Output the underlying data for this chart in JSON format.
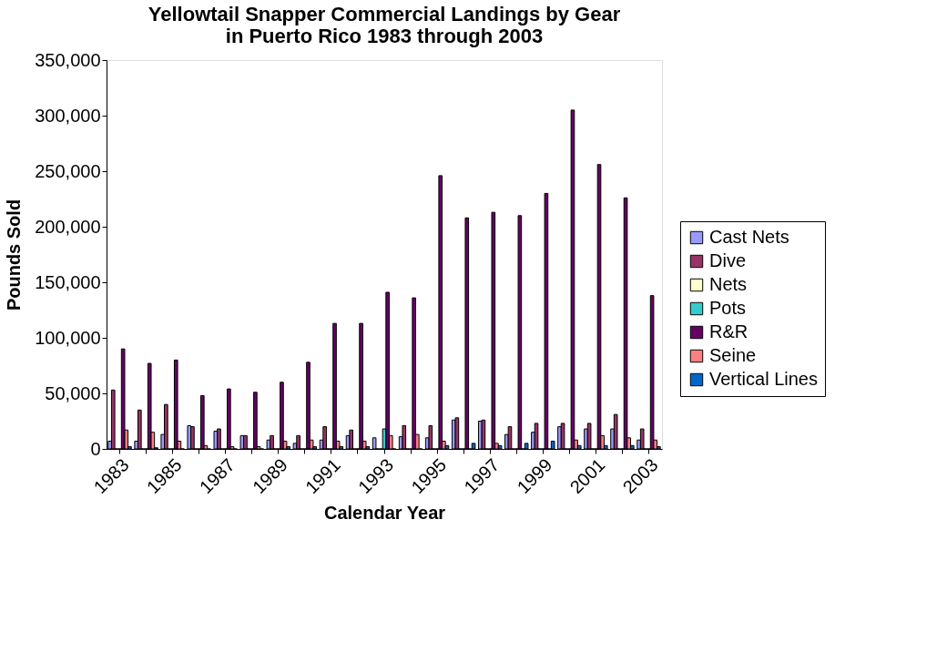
{
  "chart_data": {
    "type": "bar",
    "title": "Yellowtail Snapper Commercial Landings by Gear\nin Puerto Rico 1983 through 2003",
    "xlabel": "Calendar Year",
    "ylabel": "Pounds Sold",
    "categories": [
      "1983",
      null,
      "1985",
      null,
      "1987",
      null,
      "1989",
      null,
      "1991",
      null,
      "1993",
      null,
      "1995",
      null,
      "1997",
      null,
      "1999",
      null,
      "2001",
      null,
      "2003"
    ],
    "series": [
      {
        "name": "Cast Nets",
        "color": "#9999ff",
        "values": [
          7000,
          7000,
          13000,
          21000,
          16000,
          12000,
          8000,
          5000,
          8000,
          12000,
          10000,
          11000,
          10000,
          26000,
          25000,
          13000,
          15000,
          20000,
          18000,
          18000,
          8000
        ]
      },
      {
        "name": "Dive",
        "color": "#993366",
        "values": [
          53000,
          35000,
          40000,
          20000,
          18000,
          12000,
          12000,
          12000,
          20000,
          17000,
          0,
          21000,
          21000,
          28000,
          26000,
          20000,
          23000,
          23000,
          23000,
          31000,
          18000
        ]
      },
      {
        "name": "Nets",
        "color": "#ffffcc",
        "values": [
          0,
          0,
          0,
          0,
          0,
          0,
          0,
          0,
          0,
          0,
          0,
          0,
          0,
          0,
          0,
          0,
          0,
          0,
          0,
          0,
          0
        ]
      },
      {
        "name": "Pots",
        "color": "#33cccc",
        "values": [
          0,
          0,
          0,
          0,
          0,
          0,
          0,
          0,
          0,
          0,
          18000,
          0,
          0,
          0,
          0,
          0,
          0,
          0,
          0,
          0,
          0
        ]
      },
      {
        "name": "R&R",
        "color": "#660066",
        "values": [
          90000,
          77000,
          80000,
          48000,
          54000,
          51000,
          60000,
          78000,
          113000,
          113000,
          141000,
          136000,
          246000,
          208000,
          213000,
          210000,
          230000,
          305000,
          256000,
          226000,
          138000
        ]
      },
      {
        "name": "Seine",
        "color": "#ff8080",
        "values": [
          17000,
          15000,
          7000,
          3000,
          2000,
          2000,
          7000,
          8000,
          7000,
          7000,
          12000,
          13000,
          7000,
          0,
          5000,
          0,
          0,
          8000,
          12000,
          10000,
          8000
        ]
      },
      {
        "name": "Vertical Lines",
        "color": "#0066cc",
        "values": [
          2000,
          1000,
          0,
          0,
          0,
          0,
          2000,
          2000,
          2000,
          2000,
          0,
          0,
          3000,
          5000,
          3000,
          5000,
          7000,
          3000,
          3000,
          3000,
          2000
        ]
      }
    ],
    "ylim": [
      0,
      350000
    ],
    "yticks": [
      0,
      {
        "value": 50000,
        "label": "50,000"
      },
      {
        "value": 100000,
        "label": "100,000"
      },
      {
        "value": 150000,
        "label": "150,000"
      },
      {
        "value": 200000,
        "label": "200,000"
      },
      {
        "value": 250000,
        "label": "250,000"
      },
      {
        "value": 300000,
        "label": "300,000"
      },
      {
        "value": 350000,
        "label": "350,000"
      }
    ],
    "grid": false,
    "legend": "right"
  }
}
